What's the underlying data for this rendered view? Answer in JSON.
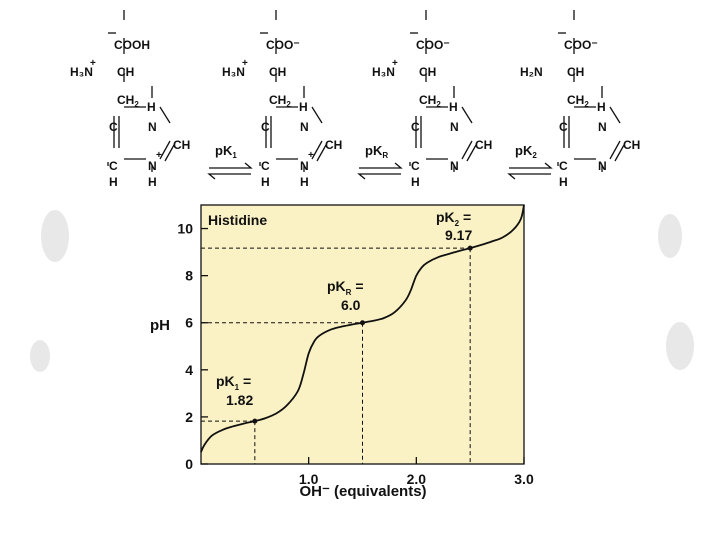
{
  "scheme": {
    "structures": [
      {
        "top_group": "COOH",
        "alpha_left": "H₃N",
        "alpha_plus": "+",
        "ring_nh_charge": "+"
      },
      {
        "top_group": "COO⁻",
        "alpha_left": "H₃N",
        "alpha_plus": "+",
        "ring_nh_charge": "+"
      },
      {
        "top_group": "COO⁻",
        "alpha_left": "H₃N",
        "alpha_plus": "+",
        "ring_nh_charge": ""
      },
      {
        "top_group": "COO⁻",
        "alpha_left": "H₂N",
        "alpha_plus": "",
        "ring_nh_charge": ""
      }
    ],
    "equilibria": [
      {
        "label": "pK",
        "sub": "1"
      },
      {
        "label": "pK",
        "sub": "R"
      },
      {
        "label": "pK",
        "sub": "2"
      }
    ]
  },
  "chart_data": {
    "type": "line",
    "title": "Histidine",
    "xlabel": "OH⁻ (equivalents)",
    "ylabel": "pH",
    "xlim": [
      0,
      3.0
    ],
    "ylim": [
      0,
      11
    ],
    "xticks": [
      "1.0",
      "2.0",
      "3.0"
    ],
    "yticks": [
      "0",
      "2",
      "4",
      "6",
      "8",
      "10"
    ],
    "series": [
      {
        "x": [
          0.0,
          0.03,
          0.1,
          0.2,
          0.3,
          0.4,
          0.5,
          0.6,
          0.7,
          0.8,
          0.9,
          0.95,
          1.0,
          1.05,
          1.1,
          1.2,
          1.3,
          1.4,
          1.5,
          1.6,
          1.7,
          1.8,
          1.9,
          1.95,
          2.0,
          2.05,
          2.1,
          2.2,
          2.3,
          2.4,
          2.5,
          2.6,
          2.7,
          2.8,
          2.9,
          2.97,
          3.0
        ],
        "y": [
          0.5,
          0.8,
          1.2,
          1.45,
          1.6,
          1.72,
          1.82,
          1.95,
          2.15,
          2.5,
          3.1,
          3.8,
          4.7,
          5.2,
          5.45,
          5.7,
          5.83,
          5.92,
          6.0,
          6.08,
          6.2,
          6.45,
          6.95,
          7.4,
          8.0,
          8.35,
          8.55,
          8.78,
          8.92,
          9.05,
          9.17,
          9.3,
          9.45,
          9.62,
          9.95,
          10.4,
          11.0
        ]
      }
    ],
    "annotations": [
      {
        "label": "pK",
        "sub": "1",
        "value_text": "1.82",
        "x": 0.5,
        "y": 1.82
      },
      {
        "label": "pK",
        "sub": "R",
        "value_text": "6.0",
        "x": 1.5,
        "y": 6.0
      },
      {
        "label": "pK",
        "sub": "2",
        "value_text": "9.17",
        "x": 2.5,
        "y": 9.17
      }
    ],
    "background": "#faf1c4"
  }
}
